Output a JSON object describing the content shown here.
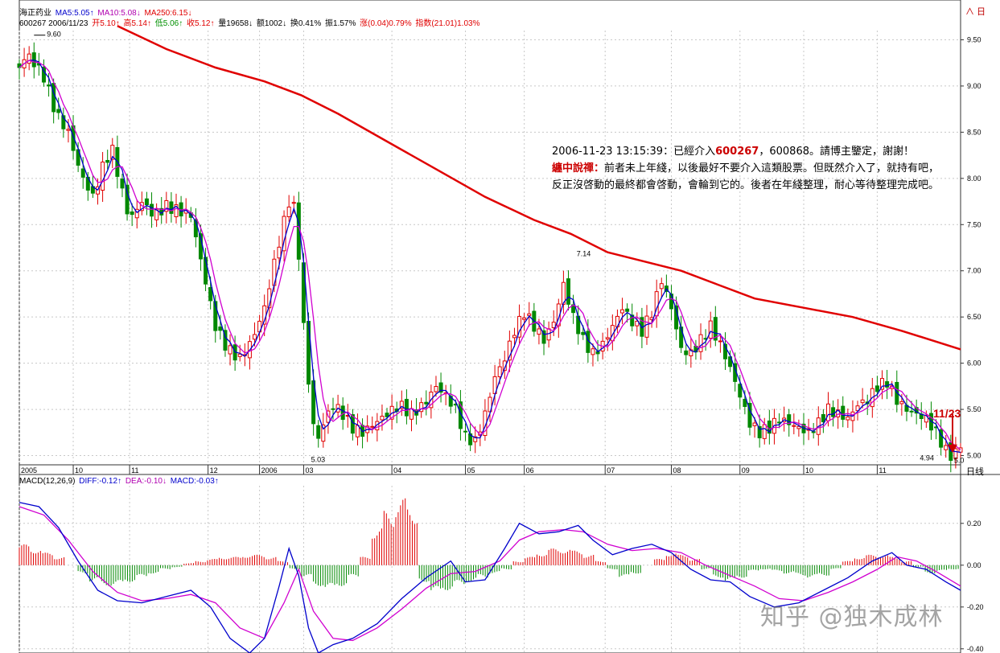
{
  "header": {
    "stock_name": "海正药业",
    "ma5": "MA5:5.05↑",
    "ma10": "MA10:5.08↓",
    "ma250": "MA250:6.15↓",
    "code_date": "600267 2006/11/23",
    "open": "开5.10↑",
    "high": "高5.14↑",
    "low": "低5.06↑",
    "close": "收5.12↑",
    "volume": "量19658↓",
    "amount": "额1002↓",
    "turnover": "换0.41%",
    "amplitude": "振1.57%",
    "change": "涨(0.04)0.79%",
    "index": "指数(21.01)1.03%",
    "top_right": "∧ 日"
  },
  "note": {
    "line1_prefix": "2006-11-23 13:15:39：已經介入",
    "code1": "600267",
    "line1_suffix": "，600868。請博主鑒定，謝謝！",
    "author": "纏中說禪：",
    "body": "前者未上年綫，以後最好不要介入這類股票。但既然介入了，就持有吧，反正沒啓動的最終都會啓動，會輪到它的。後者在年綫整理，耐心等待整理完成吧。"
  },
  "annotations": {
    "high_label": "9.60",
    "peak_label": "7.14",
    "low1_label": "5.03",
    "low2_label": "4.94",
    "low3_label": "5.0",
    "arrow_label": "11/23"
  },
  "macd_header": {
    "name": "MACD(12,26,9)",
    "diff": "DIFF:-0.12↑",
    "dea": "DEA:-0.10↓",
    "macd": "MACD:-0.03↑"
  },
  "period_label": "日线",
  "watermark": "知乎 @独木成林",
  "colors": {
    "up": "#e00000",
    "down": "#008800",
    "ma5": "#0000cc",
    "ma10": "#d000d0",
    "ma250": "#e00000",
    "grid": "#c8c8c8"
  },
  "chart_data": [
    {
      "type": "candlestick",
      "title": "海正药业",
      "ylim": [
        4.9,
        9.6
      ],
      "y_ticks": [
        "9.50",
        "9.00",
        "8.50",
        "8.00",
        "7.50",
        "7.00",
        "6.50",
        "6.00",
        "5.50",
        "5.00"
      ],
      "x_ticks": [
        "2005",
        "10",
        "11",
        "12",
        "2006",
        "03",
        "04",
        "05",
        "06",
        "07",
        "08",
        "09",
        "10",
        "11"
      ],
      "close_path": [
        [
          0,
          9.2
        ],
        [
          3,
          9.35
        ],
        [
          6,
          9.25
        ],
        [
          10,
          9.1
        ],
        [
          15,
          8.7
        ],
        [
          20,
          8.5
        ],
        [
          25,
          8.05
        ],
        [
          30,
          7.8
        ],
        [
          35,
          8.2
        ],
        [
          38,
          8.3
        ],
        [
          42,
          7.85
        ],
        [
          45,
          7.55
        ],
        [
          50,
          7.75
        ],
        [
          55,
          7.6
        ],
        [
          60,
          7.7
        ],
        [
          65,
          7.65
        ],
        [
          70,
          7.6
        ],
        [
          75,
          7.0
        ],
        [
          80,
          6.4
        ],
        [
          85,
          6.15
        ],
        [
          90,
          6.05
        ],
        [
          95,
          6.25
        ],
        [
          100,
          6.6
        ],
        [
          105,
          7.2
        ],
        [
          110,
          7.75
        ],
        [
          113,
          7.65
        ],
        [
          115,
          6.7
        ],
        [
          118,
          5.8
        ],
        [
          121,
          5.1
        ],
        [
          124,
          5.35
        ],
        [
          128,
          5.55
        ],
        [
          132,
          5.45
        ],
        [
          136,
          5.3
        ],
        [
          140,
          5.25
        ],
        [
          145,
          5.35
        ],
        [
          150,
          5.45
        ],
        [
          155,
          5.55
        ],
        [
          160,
          5.45
        ],
        [
          165,
          5.55
        ],
        [
          170,
          5.75
        ],
        [
          174,
          5.65
        ],
        [
          178,
          5.5
        ],
        [
          182,
          5.2
        ],
        [
          186,
          5.15
        ],
        [
          190,
          5.45
        ],
        [
          194,
          5.85
        ],
        [
          198,
          6.05
        ],
        [
          202,
          6.35
        ],
        [
          206,
          6.55
        ],
        [
          210,
          6.4
        ],
        [
          214,
          6.25
        ],
        [
          218,
          6.45
        ],
        [
          222,
          6.85
        ],
        [
          226,
          6.5
        ],
        [
          230,
          6.25
        ],
        [
          234,
          6.1
        ],
        [
          238,
          6.2
        ],
        [
          242,
          6.4
        ],
        [
          246,
          6.6
        ],
        [
          250,
          6.45
        ],
        [
          254,
          6.35
        ],
        [
          258,
          6.55
        ],
        [
          262,
          6.9
        ],
        [
          266,
          6.6
        ],
        [
          270,
          6.15
        ],
        [
          274,
          6.1
        ],
        [
          278,
          6.25
        ],
        [
          282,
          6.4
        ],
        [
          286,
          6.2
        ],
        [
          290,
          5.95
        ],
        [
          294,
          5.65
        ],
        [
          298,
          5.35
        ],
        [
          302,
          5.25
        ],
        [
          306,
          5.3
        ],
        [
          310,
          5.4
        ],
        [
          314,
          5.35
        ],
        [
          318,
          5.3
        ],
        [
          322,
          5.25
        ],
        [
          326,
          5.35
        ],
        [
          330,
          5.5
        ],
        [
          334,
          5.45
        ],
        [
          338,
          5.4
        ],
        [
          342,
          5.55
        ],
        [
          346,
          5.6
        ],
        [
          350,
          5.75
        ],
        [
          354,
          5.8
        ],
        [
          358,
          5.6
        ],
        [
          362,
          5.5
        ],
        [
          366,
          5.45
        ],
        [
          370,
          5.4
        ],
        [
          374,
          5.25
        ],
        [
          378,
          5.05
        ],
        [
          381,
          4.98
        ],
        [
          384,
          5.12
        ]
      ],
      "ma250_path": [
        [
          40,
          9.65
        ],
        [
          60,
          9.4
        ],
        [
          80,
          9.2
        ],
        [
          100,
          9.05
        ],
        [
          115,
          8.9
        ],
        [
          130,
          8.7
        ],
        [
          150,
          8.4
        ],
        [
          170,
          8.1
        ],
        [
          190,
          7.8
        ],
        [
          210,
          7.55
        ],
        [
          225,
          7.4
        ],
        [
          240,
          7.2
        ],
        [
          255,
          7.1
        ],
        [
          270,
          7.0
        ],
        [
          285,
          6.85
        ],
        [
          300,
          6.7
        ],
        [
          320,
          6.6
        ],
        [
          340,
          6.5
        ],
        [
          360,
          6.35
        ],
        [
          384,
          6.15
        ]
      ]
    },
    {
      "type": "bar",
      "title": "MACD(12,26,9)",
      "ylim": [
        -0.42,
        0.38
      ],
      "y_ticks": [
        "0.20",
        "0.00",
        "-0.20",
        "-0.40"
      ],
      "diff_path": [
        [
          0,
          0.3
        ],
        [
          8,
          0.28
        ],
        [
          16,
          0.18
        ],
        [
          24,
          0.02
        ],
        [
          32,
          -0.12
        ],
        [
          40,
          -0.17
        ],
        [
          50,
          -0.18
        ],
        [
          60,
          -0.15
        ],
        [
          70,
          -0.12
        ],
        [
          78,
          -0.2
        ],
        [
          86,
          -0.35
        ],
        [
          94,
          -0.42
        ],
        [
          100,
          -0.35
        ],
        [
          106,
          -0.1
        ],
        [
          110,
          0.08
        ],
        [
          114,
          -0.05
        ],
        [
          118,
          -0.3
        ],
        [
          122,
          -0.42
        ],
        [
          128,
          -0.38
        ],
        [
          136,
          -0.35
        ],
        [
          146,
          -0.28
        ],
        [
          156,
          -0.16
        ],
        [
          166,
          -0.06
        ],
        [
          176,
          0.02
        ],
        [
          182,
          -0.08
        ],
        [
          190,
          -0.07
        ],
        [
          198,
          0.08
        ],
        [
          204,
          0.2
        ],
        [
          212,
          0.15
        ],
        [
          220,
          0.16
        ],
        [
          228,
          0.19
        ],
        [
          234,
          0.12
        ],
        [
          242,
          0.05
        ],
        [
          250,
          0.08
        ],
        [
          258,
          0.1
        ],
        [
          266,
          0.06
        ],
        [
          274,
          -0.02
        ],
        [
          282,
          -0.07
        ],
        [
          290,
          -0.08
        ],
        [
          298,
          -0.15
        ],
        [
          308,
          -0.2
        ],
        [
          318,
          -0.18
        ],
        [
          328,
          -0.12
        ],
        [
          338,
          -0.06
        ],
        [
          348,
          0.02
        ],
        [
          356,
          0.06
        ],
        [
          362,
          0.0
        ],
        [
          370,
          -0.02
        ],
        [
          378,
          -0.08
        ],
        [
          384,
          -0.12
        ]
      ],
      "dea_path": [
        [
          0,
          0.28
        ],
        [
          10,
          0.24
        ],
        [
          20,
          0.12
        ],
        [
          30,
          -0.03
        ],
        [
          40,
          -0.13
        ],
        [
          50,
          -0.17
        ],
        [
          60,
          -0.16
        ],
        [
          70,
          -0.14
        ],
        [
          80,
          -0.18
        ],
        [
          90,
          -0.3
        ],
        [
          100,
          -0.35
        ],
        [
          108,
          -0.18
        ],
        [
          114,
          -0.02
        ],
        [
          120,
          -0.22
        ],
        [
          128,
          -0.35
        ],
        [
          136,
          -0.36
        ],
        [
          146,
          -0.3
        ],
        [
          156,
          -0.21
        ],
        [
          166,
          -0.11
        ],
        [
          176,
          -0.04
        ],
        [
          186,
          -0.03
        ],
        [
          196,
          0.02
        ],
        [
          204,
          0.12
        ],
        [
          212,
          0.16
        ],
        [
          222,
          0.17
        ],
        [
          230,
          0.16
        ],
        [
          240,
          0.1
        ],
        [
          250,
          0.07
        ],
        [
          260,
          0.08
        ],
        [
          270,
          0.06
        ],
        [
          280,
          0.0
        ],
        [
          290,
          -0.05
        ],
        [
          300,
          -0.1
        ],
        [
          310,
          -0.16
        ],
        [
          320,
          -0.17
        ],
        [
          330,
          -0.13
        ],
        [
          340,
          -0.08
        ],
        [
          350,
          -0.02
        ],
        [
          358,
          0.04
        ],
        [
          366,
          0.02
        ],
        [
          374,
          -0.03
        ],
        [
          384,
          -0.1
        ]
      ],
      "histogram": [
        0.1,
        0.08,
        0.06,
        0.04,
        0.0,
        -0.04,
        -0.08,
        -0.1,
        -0.1,
        -0.08,
        -0.06,
        -0.04,
        -0.02,
        -0.01,
        0.01,
        0.02,
        0.03,
        0.04,
        0.04,
        0.05,
        0.05,
        0.04,
        0.02,
        -0.02,
        -0.06,
        -0.1,
        -0.12,
        -0.1,
        -0.06,
        0.04,
        0.18,
        0.26,
        0.32,
        0.28,
        -0.08,
        -0.14,
        -0.12,
        -0.1,
        -0.08,
        -0.06,
        -0.04,
        -0.02,
        0.02,
        0.04,
        0.06,
        0.08,
        0.08,
        0.07,
        0.05,
        0.02,
        -0.02,
        -0.06,
        -0.04,
        0.0,
        0.03,
        0.06,
        0.05,
        0.03,
        -0.02,
        -0.06,
        -0.08,
        -0.06,
        -0.03,
        -0.02,
        -0.03,
        -0.04,
        -0.05,
        -0.06,
        -0.05,
        -0.02,
        0.02,
        0.04,
        0.05,
        0.05,
        0.04,
        0.02,
        -0.01,
        -0.04,
        -0.03,
        -0.02
      ]
    }
  ]
}
